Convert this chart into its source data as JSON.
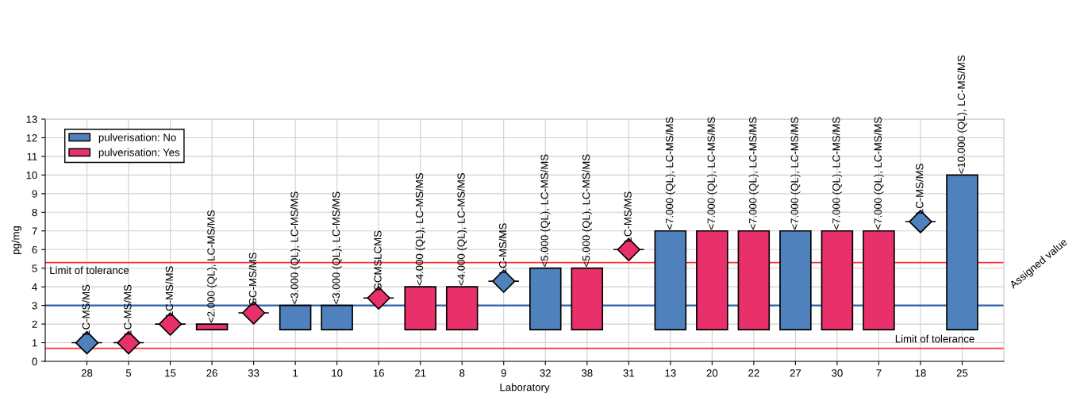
{
  "chart_data": {
    "type": "scatter",
    "xlabel": "Laboratory",
    "ylabel": "pg/mg",
    "categories": [
      "28",
      "5",
      "15",
      "26",
      "33",
      "1",
      "10",
      "16",
      "21",
      "8",
      "9",
      "32",
      "38",
      "31",
      "13",
      "20",
      "22",
      "27",
      "30",
      "7",
      "18",
      "25"
    ],
    "ylim": [
      0,
      13
    ],
    "yticks": [
      0,
      1,
      2,
      3,
      4,
      5,
      6,
      7,
      8,
      9,
      10,
      11,
      12,
      13
    ],
    "grid": true,
    "legend": "top left",
    "marker": "diamond",
    "series": [
      {
        "name": "pulverisation: No",
        "color": "#4f81bd",
        "values": [
          1.0,
          null,
          null,
          null,
          null,
          null,
          null,
          null,
          null,
          null,
          4.3,
          null,
          null,
          null,
          null,
          null,
          null,
          null,
          null,
          null,
          7.5,
          null
        ],
        "value_labels": [
          "LC-MS/MS",
          null,
          null,
          null,
          null,
          null,
          null,
          null,
          null,
          null,
          "LC-MS/MS",
          null,
          null,
          null,
          null,
          null,
          null,
          null,
          null,
          null,
          "LC-MS/MS",
          null
        ]
      },
      {
        "name": "pulverisation: Yes",
        "color": "#e8306a",
        "values": [
          null,
          1.0,
          2.0,
          null,
          2.6,
          null,
          null,
          3.4,
          null,
          null,
          null,
          null,
          null,
          6.0,
          null,
          null,
          null,
          null,
          null,
          null,
          null,
          null
        ],
        "value_labels": [
          null,
          "LC-MS/MS",
          "LC-MS/MS",
          null,
          "GC-MS/MS",
          null,
          null,
          "GCMSLCMS",
          null,
          null,
          null,
          null,
          null,
          "LC-MS/MS",
          null,
          null,
          null,
          null,
          null,
          null,
          null,
          null
        ]
      },
      {
        "color": "#4f81bd",
        "type": "bar",
        "values": [
          null,
          null,
          null,
          null,
          null,
          1.3,
          1.3,
          null,
          null,
          null,
          null,
          3.3,
          null,
          null,
          5.3,
          null,
          null,
          5.3,
          null,
          null,
          null,
          8.3
        ],
        "base": [
          null,
          null,
          null,
          null,
          null,
          1.7,
          1.7,
          null,
          null,
          null,
          null,
          1.7,
          null,
          null,
          1.7,
          null,
          null,
          1.7,
          null,
          null,
          null,
          1.7
        ],
        "value_labels": [
          null,
          null,
          null,
          null,
          null,
          "<3.000 (QL), LC-MS/MS",
          "<3.000 (QL), LC-MS/MS",
          null,
          null,
          null,
          null,
          "<5.000 (QL), LC-MS/MS",
          null,
          null,
          "<7.000 (QL), LC-MS/MS",
          null,
          null,
          "<7.000 (QL), LC-MS/MS",
          null,
          null,
          null,
          "<10.000 (QL), LC-MS/MS"
        ]
      },
      {
        "color": "#e8306a",
        "type": "bar",
        "values": [
          null,
          null,
          null,
          0.3,
          null,
          null,
          null,
          null,
          2.3,
          2.3,
          null,
          null,
          3.3,
          null,
          null,
          5.3,
          5.3,
          null,
          5.3,
          5.3,
          null,
          null
        ],
        "base": [
          null,
          null,
          null,
          1.7,
          null,
          null,
          null,
          null,
          1.7,
          1.7,
          null,
          null,
          1.7,
          null,
          null,
          1.7,
          1.7,
          null,
          1.7,
          1.7,
          null,
          null
        ],
        "value_labels": [
          null,
          null,
          null,
          "<2.000 (QL), LC-MS/MS",
          null,
          null,
          null,
          null,
          "<4.000 (QL), LC-MS/MS",
          "<4.000 (QL), LC-MS/MS",
          null,
          null,
          "<5.000 (QL), LC-MS/MS",
          null,
          null,
          "<7.000 (QL), LC-MS/MS",
          "<7.000 (QL), LC-MS/MS",
          null,
          "<7.000 (QL), LC-MS/MS",
          "<7.000 (QL), LC-MS/MS",
          null,
          null
        ]
      }
    ],
    "ref_lines": [
      {
        "axis": "y",
        "value": 3.0,
        "label": "Assigned value",
        "color": "#2e63a8"
      },
      {
        "axis": "y",
        "value": 5.3,
        "label": "Limit of tolerance",
        "color": "#ff3030"
      },
      {
        "axis": "y",
        "value": 0.7,
        "label": "Limit of tolerance",
        "color": "#ff3030"
      }
    ]
  }
}
